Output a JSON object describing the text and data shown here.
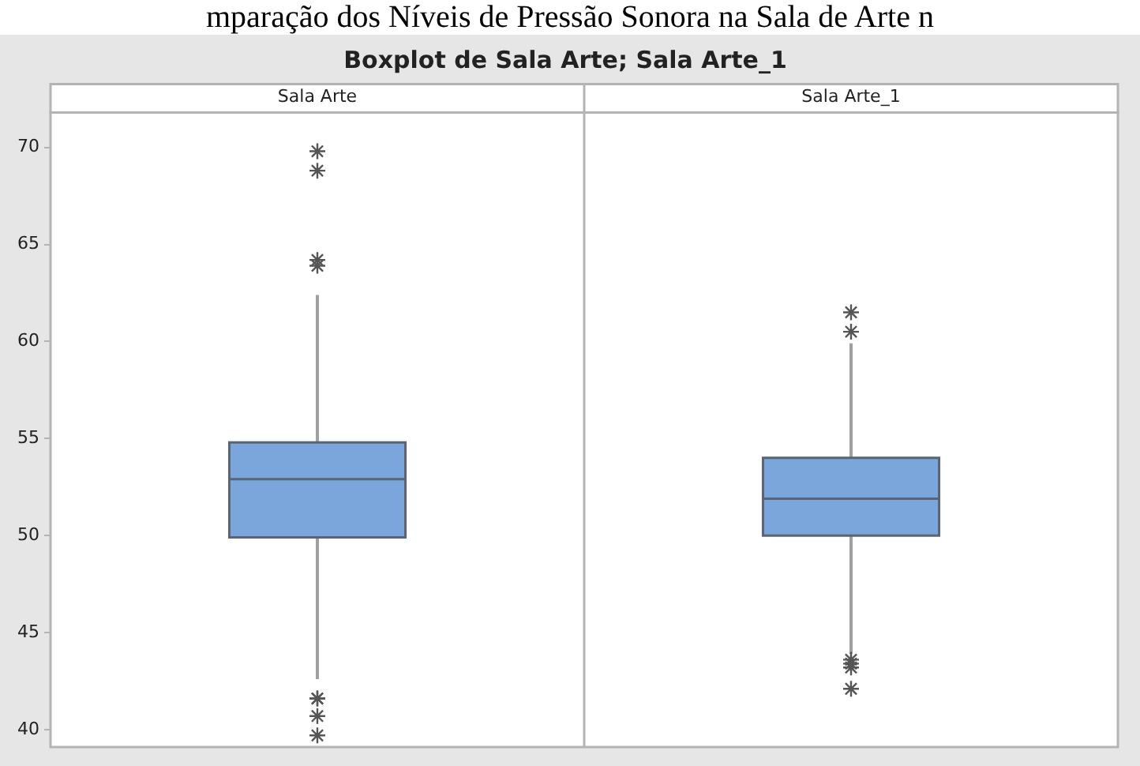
{
  "chart_data": {
    "type": "box",
    "title": "Boxplot de Sala Arte; Sala Arte_1",
    "annotations": [
      "mparação dos Níveis de Pressão Sonora na Sala de Arte n"
    ],
    "categories": [
      "Sala Arte",
      "Sala Arte_1"
    ],
    "boxes": [
      {
        "low": 42.6,
        "q1": 49.9,
        "median": 52.9,
        "q3": 54.8,
        "high": 62.4,
        "outliers": [
          69.8,
          68.8,
          64.2,
          63.9,
          41.6,
          41.6,
          40.7,
          39.7
        ]
      },
      {
        "low": 43.9,
        "q1": 50.0,
        "median": 51.9,
        "q3": 54.0,
        "high": 59.9,
        "outliers": [
          61.5,
          60.5,
          43.6,
          43.4,
          43.2,
          42.1
        ]
      }
    ],
    "color": "#7ba6db",
    "marker": "star",
    "ylim": [
      39.1,
      71.8
    ],
    "yticks": [
      40,
      45,
      50,
      55,
      60,
      65,
      70
    ]
  }
}
